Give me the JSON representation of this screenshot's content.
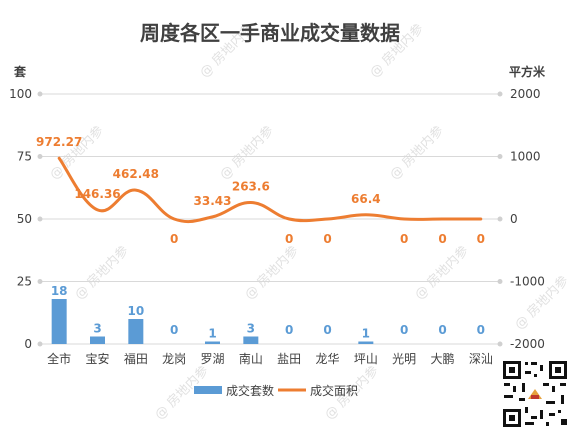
{
  "chart_data": {
    "type": "bar",
    "title": "周度各区一手商业成交量数据",
    "left_unit": "套",
    "right_unit": "平方米",
    "categories": [
      "全市",
      "宝安",
      "福田",
      "龙岗",
      "罗湖",
      "南山",
      "盐田",
      "龙华",
      "坪山",
      "光明",
      "大鹏",
      "深汕"
    ],
    "series": [
      {
        "name": "成交套数",
        "type": "bar",
        "axis": "left",
        "color": "#5b9bd5",
        "values": [
          18,
          3,
          10,
          0,
          1,
          3,
          0,
          0,
          1,
          0,
          0,
          0
        ],
        "labels": [
          "18",
          "3",
          "10",
          "0",
          "1",
          "3",
          "0",
          "0",
          "1",
          "0",
          "0",
          "0"
        ]
      },
      {
        "name": "成交面积",
        "type": "line",
        "axis": "right",
        "color": "#ed7d31",
        "values": [
          972.27,
          146.36,
          462.48,
          0,
          33.43,
          263.6,
          0,
          0,
          66.4,
          0,
          0,
          0
        ],
        "labels": [
          "972.27",
          "146.36",
          "462.48",
          "0",
          "33.43",
          "263.6",
          "0",
          "0",
          "66.4",
          "0",
          "0",
          "0"
        ]
      }
    ],
    "y_left": {
      "min": 0,
      "max": 100,
      "ticks": [
        "0",
        "25",
        "50",
        "75",
        "100"
      ]
    },
    "y_right": {
      "min": -2000,
      "max": 2000,
      "ticks": [
        "-2000",
        "-1000",
        "0",
        "1000",
        "2000"
      ]
    },
    "grid": true,
    "legend_position": "bottom"
  },
  "watermark": "房地内参",
  "qr_icon": "qr-code-icon"
}
